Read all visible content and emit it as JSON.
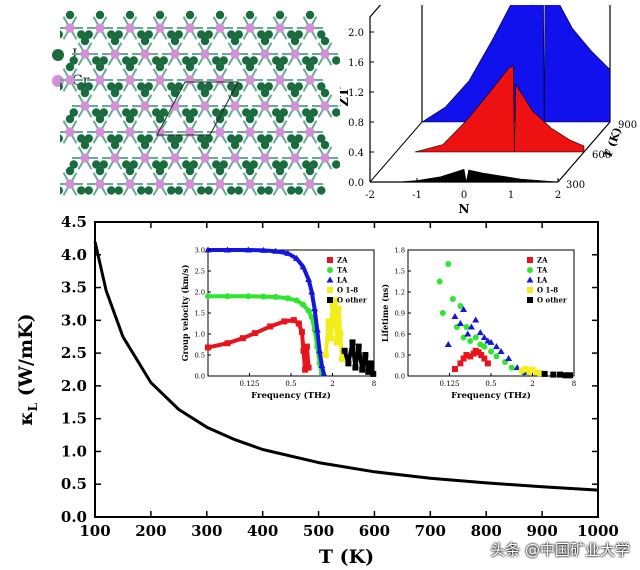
{
  "structure": {
    "legend": [
      {
        "label": "I",
        "color": "#1a6b3e"
      },
      {
        "label": "Cr",
        "color": "#d48fd6"
      }
    ]
  },
  "watermark": "头条 @中国矿业大学",
  "chart_data": [
    {
      "id": "main",
      "type": "line",
      "title": "",
      "xlabel": "T (K)",
      "ylabel": "κL (W/mK)",
      "ylabel_main": "κ",
      "ylabel_sub": "L",
      "ylabel_unit": "(W/mK)",
      "xlim": [
        100,
        1000
      ],
      "ylim": [
        0.0,
        4.5
      ],
      "xticks": [
        "100",
        "200",
        "300",
        "400",
        "500",
        "600",
        "700",
        "800",
        "900",
        "1000"
      ],
      "yticks": [
        "0.0",
        "0.5",
        "1.0",
        "1.5",
        "2.0",
        "2.5",
        "3.0",
        "3.5",
        "4.0",
        "4.5"
      ],
      "series": [
        {
          "name": "κL",
          "color": "#000000",
          "x": [
            100,
            120,
            150,
            200,
            250,
            300,
            350,
            400,
            500,
            600,
            700,
            800,
            900,
            1000
          ],
          "y": [
            4.2,
            3.45,
            2.75,
            2.05,
            1.64,
            1.37,
            1.18,
            1.03,
            0.83,
            0.69,
            0.59,
            0.52,
            0.46,
            0.41
          ]
        }
      ]
    },
    {
      "id": "zt",
      "type": "area",
      "title": "",
      "xlabel": "N",
      "ylabel": "ZT",
      "zlabel": "T (K)",
      "xlim": [
        -2,
        2
      ],
      "ylim": [
        0.0,
        2.2
      ],
      "xticks": [
        "-2",
        "-1",
        "0",
        "1",
        "2"
      ],
      "yticks": [
        "0.0",
        "0.4",
        "0.8",
        "1.2",
        "1.6",
        "2.0"
      ],
      "zticks": [
        "300",
        "600",
        "900"
      ],
      "series": [
        {
          "name": "300",
          "color": "#000000",
          "x": [
            -1.4,
            -1.0,
            -0.5,
            -0.2,
            0.0,
            0.05,
            0.1,
            0.4,
            0.8,
            1.2,
            1.6,
            2.0
          ],
          "y": [
            0.0,
            0.02,
            0.07,
            0.13,
            0.17,
            0.0,
            0.16,
            0.12,
            0.08,
            0.04,
            0.02,
            0.0
          ]
        },
        {
          "name": "600",
          "color": "#ee1111",
          "x": [
            -1.6,
            -1.0,
            -0.5,
            0.0,
            0.4,
            0.5,
            0.52,
            0.55,
            0.9,
            1.3,
            1.7,
            2.0
          ],
          "y": [
            0.0,
            0.1,
            0.42,
            0.8,
            1.12,
            1.15,
            0.0,
            0.9,
            0.55,
            0.32,
            0.16,
            0.08
          ]
        },
        {
          "name": "900",
          "color": "#1111ee",
          "x": [
            -2.0,
            -1.5,
            -1.0,
            -0.5,
            0.0,
            0.4,
            0.58,
            0.6,
            0.62,
            0.9,
            1.2,
            1.6,
            2.0
          ],
          "y": [
            0.0,
            0.2,
            0.55,
            1.1,
            1.7,
            2.05,
            2.05,
            0.0,
            1.95,
            1.6,
            1.25,
            0.95,
            0.7
          ]
        }
      ]
    },
    {
      "id": "groupvel",
      "type": "scatter",
      "title": "",
      "xlabel": "Frequency (THz)",
      "ylabel": "Group velocity (km/s)",
      "xscale": "log2",
      "xlim": [
        0.03125,
        8
      ],
      "ylim": [
        0,
        3
      ],
      "xticks": [
        "0.125",
        "0.5",
        "2",
        "8"
      ],
      "yticks": [
        "0.0",
        "0.5",
        "1.0",
        "1.5",
        "2.0",
        "2.5",
        "3.0"
      ],
      "legend": [
        "ZA",
        "TA",
        "LA",
        "O 1-8",
        "O other"
      ],
      "series": [
        {
          "name": "ZA",
          "color": "#e8141c",
          "marker": "square",
          "x": [
            0.031,
            0.06,
            0.1,
            0.15,
            0.25,
            0.4,
            0.55,
            0.65,
            0.72,
            0.76,
            0.8,
            0.85,
            0.9
          ],
          "y": [
            0.68,
            0.78,
            0.9,
            1.02,
            1.18,
            1.3,
            1.33,
            1.25,
            1.05,
            0.6,
            0.15,
            0.7,
            0.2
          ]
        },
        {
          "name": "TA",
          "color": "#2ee62e",
          "marker": "circle",
          "x": [
            0.031,
            0.06,
            0.12,
            0.2,
            0.3,
            0.45,
            0.6,
            0.75,
            0.9,
            1.0,
            1.1,
            1.2,
            1.3,
            1.4
          ],
          "y": [
            1.9,
            1.9,
            1.9,
            1.89,
            1.88,
            1.85,
            1.8,
            1.7,
            1.55,
            1.4,
            1.1,
            0.7,
            0.3,
            0.05
          ]
        },
        {
          "name": "LA",
          "color": "#1515e0",
          "marker": "triangle",
          "x": [
            0.031,
            0.06,
            0.12,
            0.2,
            0.3,
            0.45,
            0.6,
            0.75,
            0.9,
            1.0,
            1.1,
            1.2,
            1.3,
            1.4,
            1.5
          ],
          "y": [
            3.0,
            3.0,
            3.0,
            2.99,
            2.97,
            2.92,
            2.8,
            2.6,
            2.3,
            2.0,
            1.6,
            1.1,
            0.6,
            0.25,
            0.05
          ]
        },
        {
          "name": "O 1-8",
          "color": "#f2ee1a",
          "marker": "square",
          "x": [
            1.6,
            1.75,
            1.9,
            2.0,
            2.1,
            2.2,
            2.3,
            2.45,
            2.6,
            2.75
          ],
          "y": [
            0.5,
            1.3,
            0.9,
            1.7,
            1.2,
            1.8,
            0.8,
            1.6,
            1.0,
            0.4
          ]
        },
        {
          "name": "O other",
          "color": "#000000",
          "marker": "square",
          "x": [
            3.0,
            3.4,
            3.9,
            4.3,
            4.8,
            5.4,
            6.0,
            6.6,
            7.2,
            7.8
          ],
          "y": [
            0.6,
            0.3,
            0.8,
            0.2,
            0.7,
            0.15,
            0.5,
            0.1,
            0.3,
            0.05
          ]
        }
      ]
    },
    {
      "id": "lifetime",
      "type": "scatter",
      "title": "",
      "xlabel": "Frequency (THz)",
      "ylabel": "Lifetime (ns)",
      "xscale": "log2",
      "xlim": [
        0.03125,
        8
      ],
      "ylim": [
        0.0,
        1.8
      ],
      "xticks": [
        "0.125",
        "0.5",
        "2",
        "8"
      ],
      "yticks": [
        "0.0",
        "0.3",
        "0.6",
        "0.9",
        "1.2",
        "1.5",
        "1.8"
      ],
      "legend": [
        "ZA",
        "TA",
        "LA",
        "O 1-8",
        "O other"
      ],
      "series": [
        {
          "name": "ZA",
          "color": "#e8141c",
          "marker": "square",
          "x": [
            0.15,
            0.18,
            0.2,
            0.22,
            0.25,
            0.28,
            0.3,
            0.33,
            0.36,
            0.4,
            0.45
          ],
          "y": [
            0.1,
            0.18,
            0.25,
            0.3,
            0.28,
            0.32,
            0.36,
            0.34,
            0.3,
            0.25,
            0.18
          ]
        },
        {
          "name": "TA",
          "color": "#2ee62e",
          "marker": "circle",
          "x": [
            0.09,
            0.1,
            0.12,
            0.14,
            0.16,
            0.18,
            0.2,
            0.22,
            0.25,
            0.3,
            0.35,
            0.4,
            0.5,
            0.6,
            0.8,
            1.0,
            1.5
          ],
          "y": [
            1.35,
            0.9,
            1.6,
            1.1,
            0.7,
            1.0,
            0.55,
            0.7,
            0.5,
            0.55,
            0.45,
            0.42,
            0.35,
            0.28,
            0.2,
            0.12,
            0.05
          ]
        },
        {
          "name": "LA",
          "color": "#1515e0",
          "marker": "triangle",
          "x": [
            0.12,
            0.15,
            0.18,
            0.2,
            0.23,
            0.26,
            0.3,
            0.35,
            0.4,
            0.45,
            0.5,
            0.6,
            0.7,
            0.9,
            1.2,
            1.6
          ],
          "y": [
            0.45,
            0.85,
            0.75,
            0.95,
            0.6,
            0.7,
            0.8,
            0.62,
            0.55,
            0.5,
            0.48,
            0.42,
            0.35,
            0.25,
            0.12,
            0.05
          ]
        },
        {
          "name": "O 1-8",
          "color": "#f2ee1a",
          "marker": "square",
          "x": [
            1.4,
            1.6,
            1.8,
            2.0,
            2.3,
            2.6
          ],
          "y": [
            0.08,
            0.1,
            0.06,
            0.09,
            0.05,
            0.04
          ]
        },
        {
          "name": "O other",
          "color": "#000000",
          "marker": "square",
          "x": [
            3.0,
            4.0,
            5.0,
            6.0,
            7.0
          ],
          "y": [
            0.03,
            0.02,
            0.02,
            0.01,
            0.01
          ]
        }
      ]
    }
  ]
}
